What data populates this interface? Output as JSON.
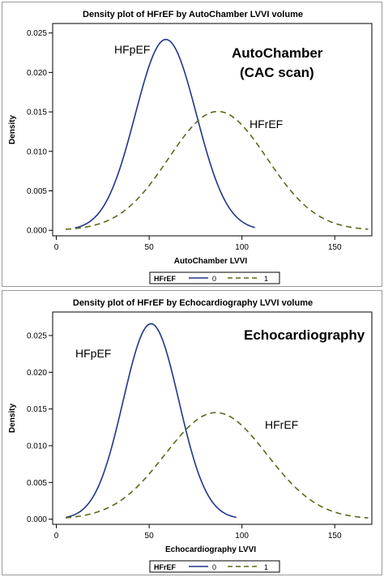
{
  "colors": {
    "hfpef": "#22358a",
    "hfref": "#5a6a1a"
  },
  "legend": {
    "title": "HFrEF",
    "entries": [
      "0",
      "1"
    ]
  },
  "chart_data": [
    {
      "type": "line",
      "title": "Density plot of HFrEF by AutoChamber LVVI volume",
      "xlabel": "AutoChamber LVVI",
      "ylabel": "Density",
      "xlim": [
        -2,
        170
      ],
      "ylim": [
        -0.0007,
        0.0262
      ],
      "xticks": [
        0,
        50,
        100,
        150
      ],
      "yticks": [
        "0.000",
        "0.005",
        "0.010",
        "0.015",
        "0.020",
        "0.025"
      ],
      "big_label_1": "AutoChamber",
      "big_label_2": "(CAC scan)",
      "series": [
        {
          "name": "HFpEF",
          "line": "solid",
          "mean": 59,
          "sd": 16.5,
          "xmin": 10,
          "xmax": 107
        },
        {
          "name": "HFrEF",
          "line": "dashed",
          "mean": 87,
          "sd": 26.5,
          "xmin": 5,
          "xmax": 168
        }
      ]
    },
    {
      "type": "line",
      "title": "Density plot of HFrEF by Echocardiography LVVI volume",
      "xlabel": "Echocardiography LVVI",
      "ylabel": "Density",
      "xlim": [
        -2,
        170
      ],
      "ylim": [
        -0.0007,
        0.0282
      ],
      "xticks": [
        0,
        50,
        100,
        150
      ],
      "yticks": [
        "0.000",
        "0.005",
        "0.010",
        "0.015",
        "0.020",
        "0.025"
      ],
      "big_label_1": "Echocardiography",
      "big_label_2": "",
      "series": [
        {
          "name": "HFpEF",
          "line": "solid",
          "mean": 51,
          "sd": 15,
          "xmin": 5,
          "xmax": 97
        },
        {
          "name": "HFrEF",
          "line": "dashed",
          "mean": 86,
          "sd": 27.5,
          "xmin": 5,
          "xmax": 168
        }
      ]
    }
  ]
}
